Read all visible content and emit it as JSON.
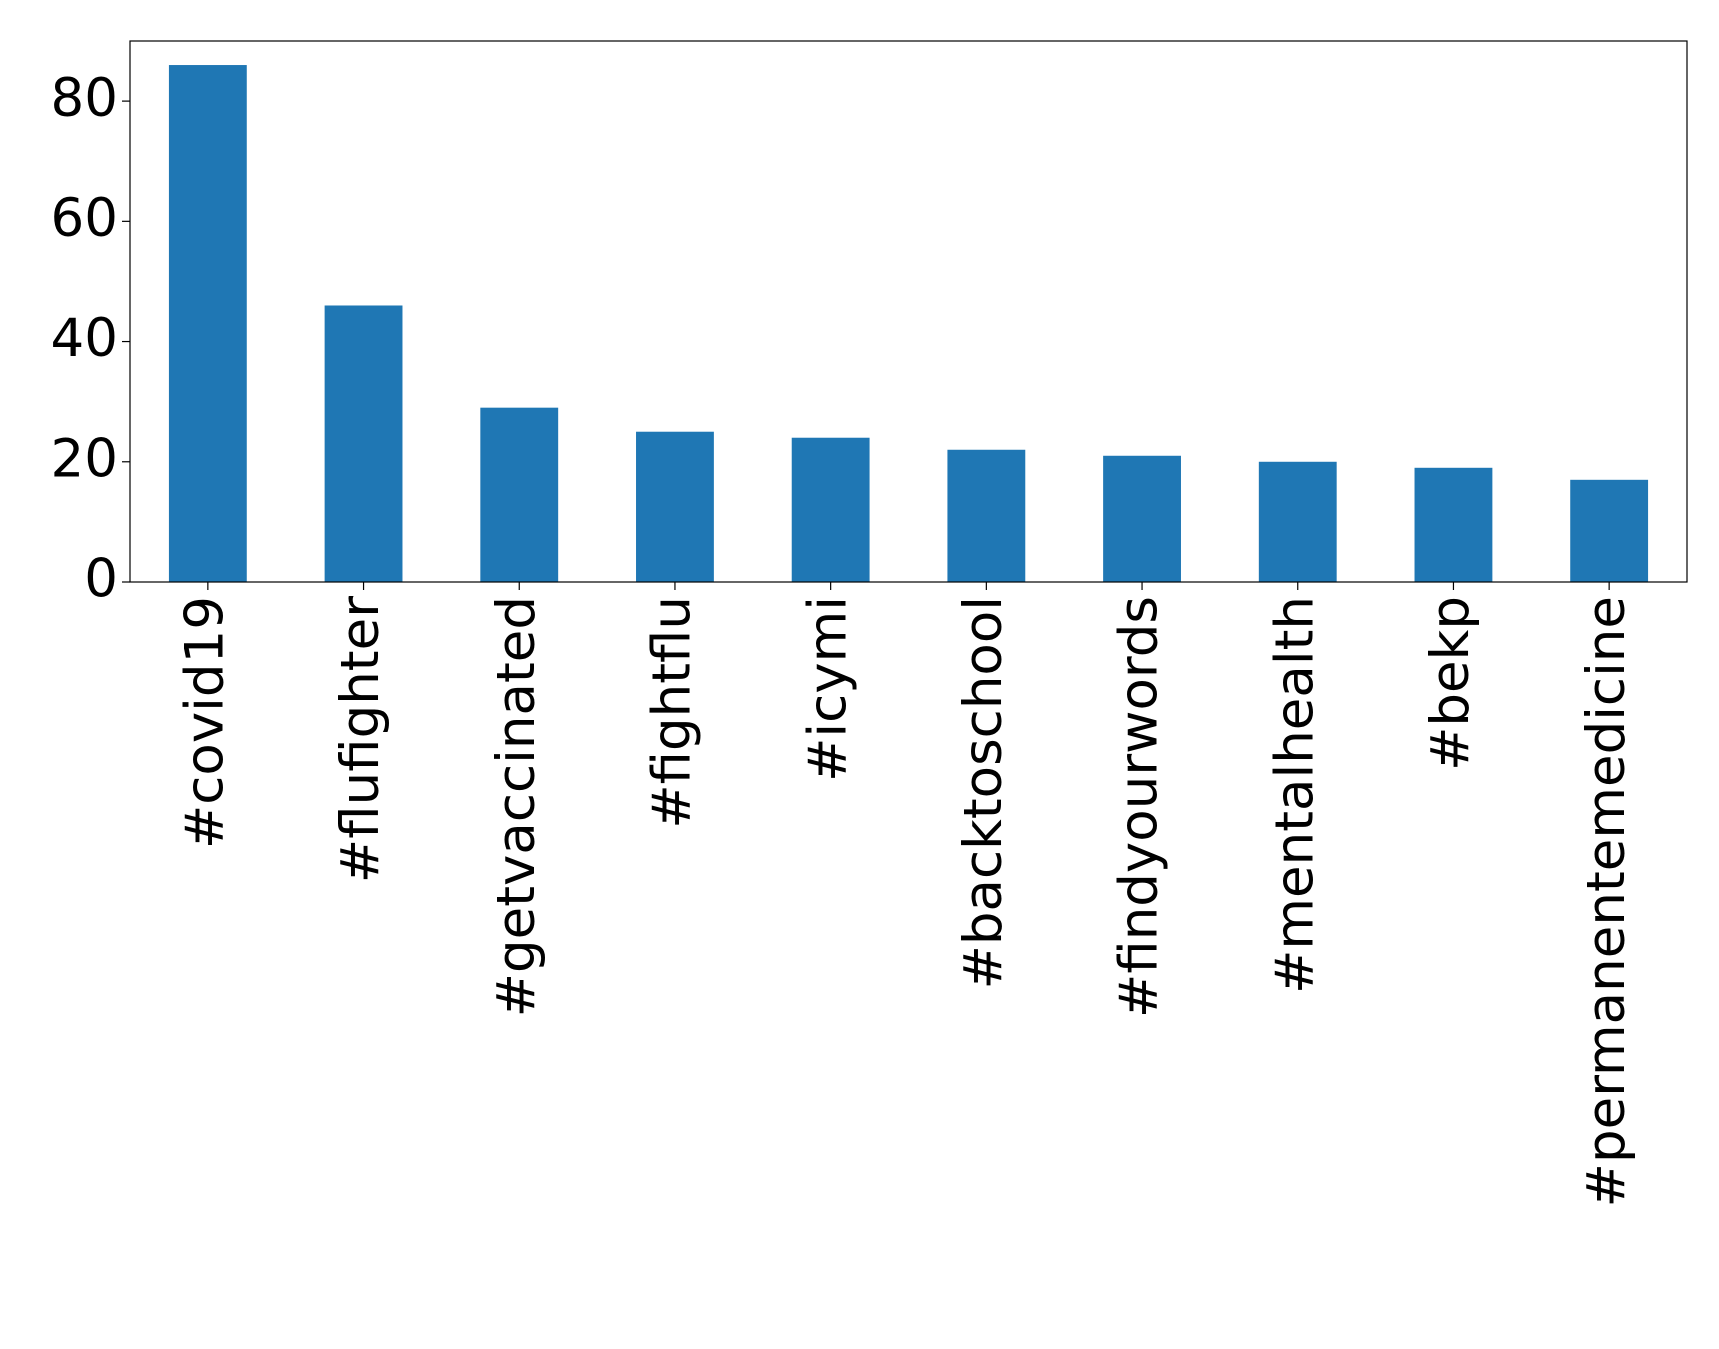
{
  "chart_data": {
    "type": "bar",
    "categories": [
      "#covid19",
      "#flufighter",
      "#getvaccinated",
      "#fightflu",
      "#icymi",
      "#backtoschool",
      "#findyourwords",
      "#mentalhealth",
      "#bekp",
      "#permanentemedicine"
    ],
    "values": [
      86,
      46,
      29,
      25,
      24,
      22,
      21,
      20,
      19,
      17
    ],
    "color": "#1f77b4",
    "ylim": [
      0,
      90
    ],
    "yticks": [
      0,
      20,
      40,
      60,
      80
    ],
    "grid": false
  }
}
